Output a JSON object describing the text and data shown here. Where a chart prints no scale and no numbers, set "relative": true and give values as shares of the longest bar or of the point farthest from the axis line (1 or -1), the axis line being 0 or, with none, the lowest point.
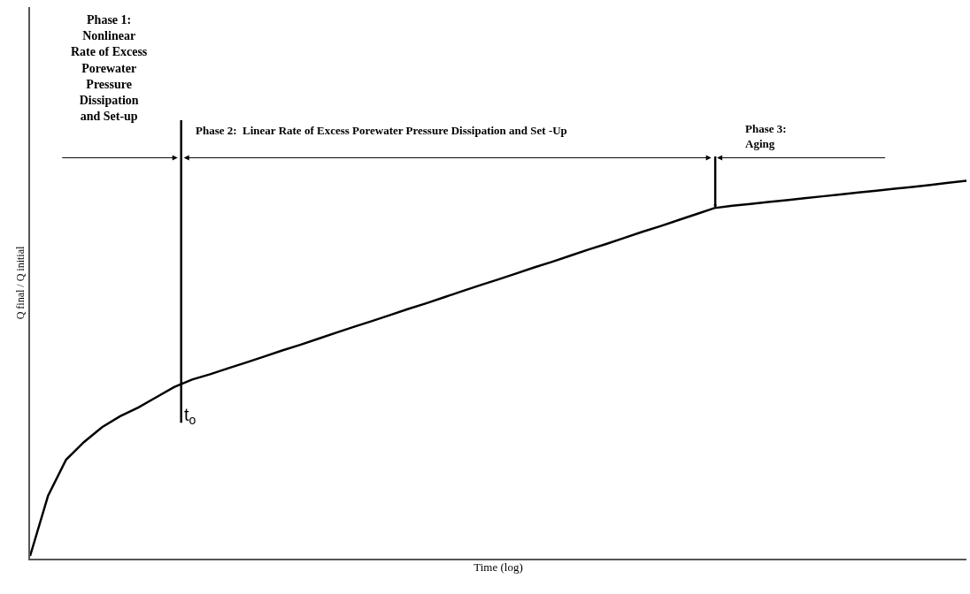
{
  "chart_data": {
    "type": "line",
    "relative": true,
    "xlabel": "Time (log)",
    "ylabel": "Q final / Q initial",
    "color": "#000000",
    "marker": "none",
    "tick_labels": false,
    "categories": [
      null,
      null,
      null,
      null,
      null,
      null,
      null,
      null,
      null,
      null,
      null,
      null,
      null,
      null,
      null,
      null,
      null,
      null,
      null,
      null,
      null,
      null,
      null,
      null,
      null,
      null,
      null,
      null,
      null,
      null,
      null,
      null,
      null,
      null,
      null,
      null,
      null,
      null,
      null,
      null,
      null,
      null,
      null,
      null,
      null,
      null,
      null,
      null,
      null,
      null,
      null,
      null,
      null
    ],
    "values": [
      0.007,
      0.167,
      0.262,
      0.309,
      0.348,
      0.377,
      0.4,
      0.427,
      0.454,
      0.474,
      0.488,
      0.504,
      0.519,
      0.535,
      0.551,
      0.566,
      0.582,
      0.598,
      0.614,
      0.629,
      0.645,
      0.661,
      0.676,
      0.692,
      0.708,
      0.724,
      0.739,
      0.755,
      0.771,
      0.786,
      0.802,
      0.818,
      0.833,
      0.849,
      0.865,
      0.88,
      0.896,
      0.912,
      0.928,
      0.934,
      0.939,
      0.944,
      0.949,
      0.954,
      0.959,
      0.964,
      0.969,
      0.974,
      0.979,
      0.984,
      0.989,
      0.995,
      1.0
    ],
    "annotations": [
      "Phase 1:\nNonlinear\nRate of Excess\nPorewater\nPressure\nDissipation\nand Set-up",
      "Phase 2:  Linear Rate of Excess Porewater Pressure Dissipation and Set -Up",
      "Phase 3:\nAging",
      "t$_{o}$"
    ]
  }
}
